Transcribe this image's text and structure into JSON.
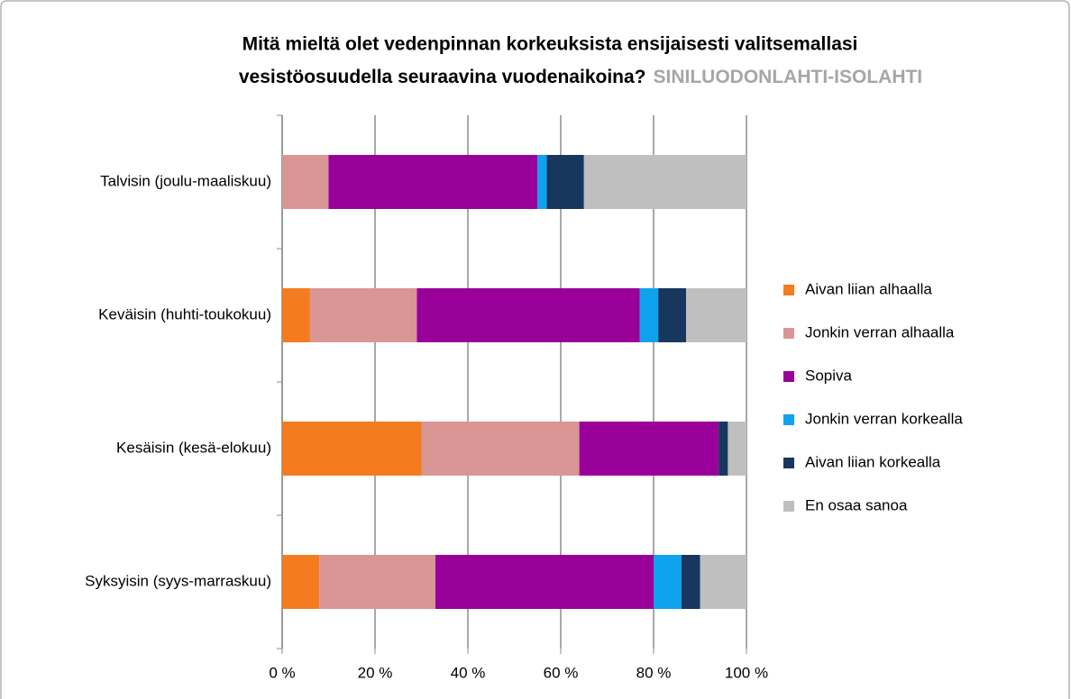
{
  "chart_data": {
    "type": "stacked_bar_horizontal",
    "title": [
      "Mitä mieltä olet vedenpinnan korkeuksista ensijaisesti valitsemallasi",
      "vesistöosuudella seuraavina vuodenaikoina?"
    ],
    "subtitle": "SINILUODONLAHTI-ISOLAHTI",
    "categories": [
      "Talvisin (joulu-maaliskuu)",
      "Keväisin (huhti-toukokuu)",
      "Kesäisin (kesä-elokuu)",
      "Syksyisin (syys-marraskuu)"
    ],
    "series": [
      {
        "name": "Aivan liian alhaalla",
        "color": "#f47b20",
        "values": [
          0,
          6,
          30,
          8
        ]
      },
      {
        "name": "Jonkin verran alhaalla",
        "color": "#d99694",
        "values": [
          10,
          23,
          34,
          25
        ]
      },
      {
        "name": "Sopiva",
        "color": "#990099",
        "values": [
          45,
          48,
          30,
          47
        ]
      },
      {
        "name": "Jonkin verran korkealla",
        "color": "#0ea2ef",
        "values": [
          2,
          4,
          0,
          6
        ]
      },
      {
        "name": "Aivan liian korkealla",
        "color": "#17375e",
        "values": [
          8,
          6,
          2,
          4
        ]
      },
      {
        "name": "En osaa sanoa",
        "color": "#bfbfbf",
        "values": [
          35,
          13,
          4,
          10
        ]
      }
    ],
    "xlim": [
      0,
      100
    ],
    "xticks": [
      {
        "value": 0,
        "label": "0 %"
      },
      {
        "value": 20,
        "label": "20 %"
      },
      {
        "value": 40,
        "label": "40 %"
      },
      {
        "value": 60,
        "label": "60 %"
      },
      {
        "value": 80,
        "label": "80 %"
      },
      {
        "value": 100,
        "label": "100 %"
      }
    ],
    "grid": true,
    "legend": "right"
  }
}
